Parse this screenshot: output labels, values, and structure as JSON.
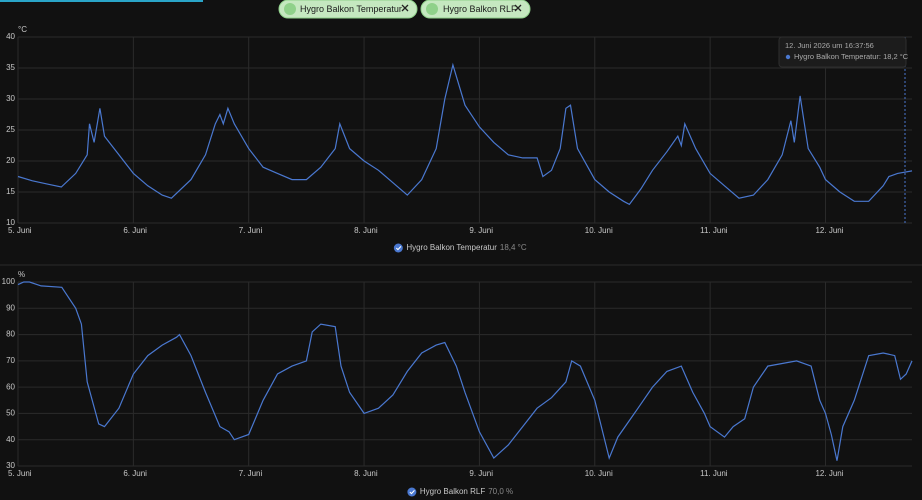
{
  "filters": [
    "Hygro Balkon Temperatur",
    "Hygro Balkon RLF"
  ],
  "chart_data": [
    {
      "type": "line",
      "y_unit": "°C",
      "grid": true,
      "xlim": [
        5,
        12.75
      ],
      "xticks": [
        {
          "value": 5,
          "label": "5. Juni"
        },
        {
          "value": 6,
          "label": "6. Juni"
        },
        {
          "value": 7,
          "label": "7. Juni"
        },
        {
          "value": 8,
          "label": "8. Juni"
        },
        {
          "value": 9,
          "label": "9. Juni"
        },
        {
          "value": 10,
          "label": "10. Juni"
        },
        {
          "value": 11,
          "label": "11. Juni"
        },
        {
          "value": 12,
          "label": "12. Juni"
        }
      ],
      "ylim": [
        10,
        40
      ],
      "yticks": [
        10,
        15,
        20,
        25,
        30,
        35,
        40
      ],
      "x": [
        5,
        5.125,
        5.25,
        5.375,
        5.5,
        5.6,
        5.62,
        5.66,
        5.71,
        5.75,
        5.875,
        6,
        6.125,
        6.25,
        6.33,
        6.5,
        6.625,
        6.71,
        6.75,
        6.78,
        6.82,
        6.875,
        7,
        7.125,
        7.25,
        7.375,
        7.5,
        7.625,
        7.75,
        7.79,
        7.875,
        8,
        8.125,
        8.25,
        8.375,
        8.5,
        8.625,
        8.7,
        8.77,
        8.875,
        9,
        9.125,
        9.25,
        9.375,
        9.5,
        9.55,
        9.625,
        9.7,
        9.75,
        9.79,
        9.85,
        10,
        10.125,
        10.25,
        10.3,
        10.4,
        10.5,
        10.625,
        10.72,
        10.75,
        10.78,
        10.875,
        11,
        11.125,
        11.25,
        11.375,
        11.5,
        11.625,
        11.7,
        11.73,
        11.78,
        11.85,
        11.95,
        12,
        12.125,
        12.25,
        12.375,
        12.5,
        12.55,
        12.625,
        12.75
      ],
      "series": [
        {
          "name": "Hygro Balkon Temperatur",
          "color": "#4a78d0",
          "state": "18,4 °C",
          "values": [
            17.5,
            16.8,
            16.3,
            15.8,
            18,
            21,
            26,
            23,
            28.5,
            24,
            21,
            18,
            16,
            14.5,
            14,
            17,
            21,
            26,
            27.5,
            26,
            28.5,
            26,
            22,
            19,
            18,
            17,
            17,
            19,
            22,
            26,
            22,
            20,
            18.5,
            16.5,
            14.5,
            17,
            22,
            30,
            35.5,
            29,
            25.5,
            23,
            21,
            20.5,
            20.5,
            17.5,
            18.5,
            22,
            28.5,
            29,
            22,
            17,
            15,
            13.5,
            13,
            15.5,
            18.5,
            21.5,
            24,
            22.5,
            26,
            22,
            18,
            16,
            14,
            14.5,
            17,
            21,
            26.5,
            23,
            30.5,
            22,
            19,
            17,
            15,
            13.5,
            13.5,
            16,
            17.5,
            18,
            18.4
          ]
        }
      ],
      "tooltip": {
        "time": "12. Juni 2026 um 16:37:56",
        "text": "Hygro Balkon Temperatur: 18,2 °C"
      }
    },
    {
      "type": "line",
      "y_unit": "%",
      "grid": true,
      "xlim": [
        5,
        12.75
      ],
      "xticks": [
        {
          "value": 5,
          "label": "5. Juni"
        },
        {
          "value": 6,
          "label": "6. Juni"
        },
        {
          "value": 7,
          "label": "7. Juni"
        },
        {
          "value": 8,
          "label": "8. Juni"
        },
        {
          "value": 9,
          "label": "9. Juni"
        },
        {
          "value": 10,
          "label": "10. Juni"
        },
        {
          "value": 11,
          "label": "11. Juni"
        },
        {
          "value": 12,
          "label": "12. Juni"
        }
      ],
      "ylim": [
        30,
        100
      ],
      "yticks": [
        30,
        40,
        50,
        60,
        70,
        80,
        90,
        100
      ],
      "x": [
        5,
        5.05,
        5.1,
        5.2,
        5.38,
        5.5,
        5.55,
        5.6,
        5.7,
        5.75,
        5.875,
        6,
        6.125,
        6.25,
        6.375,
        6.4,
        6.5,
        6.625,
        6.75,
        6.83,
        6.875,
        7,
        7.125,
        7.25,
        7.375,
        7.5,
        7.55,
        7.625,
        7.75,
        7.8,
        7.875,
        8,
        8.125,
        8.25,
        8.375,
        8.5,
        8.625,
        8.7,
        8.8,
        8.875,
        9,
        9.125,
        9.25,
        9.375,
        9.5,
        9.625,
        9.75,
        9.8,
        9.875,
        10,
        10.125,
        10.2,
        10.375,
        10.5,
        10.625,
        10.75,
        10.85,
        10.95,
        11,
        11.125,
        11.2,
        11.3,
        11.375,
        11.5,
        11.625,
        11.75,
        11.875,
        11.95,
        12,
        12.05,
        12.1,
        12.15,
        12.25,
        12.375,
        12.5,
        12.6,
        12.65,
        12.7,
        12.75
      ],
      "series": [
        {
          "name": "Hygro Balkon RLF",
          "color": "#4a78d0",
          "state": "70,0 %",
          "values": [
            99,
            100,
            100,
            98.5,
            98,
            90,
            84,
            62,
            46,
            45,
            52,
            65,
            72,
            76,
            79,
            80,
            72,
            58,
            45,
            43,
            40,
            42,
            55,
            65,
            68,
            70,
            81,
            84,
            83,
            68,
            58,
            50,
            52,
            57,
            66,
            73,
            76,
            77,
            68,
            58,
            43,
            33,
            38,
            45,
            52,
            56,
            62,
            70,
            68,
            55,
            33,
            41,
            52,
            60,
            66,
            68,
            58,
            50,
            45,
            41,
            45,
            48,
            60,
            68,
            69,
            70,
            68,
            55,
            50,
            42,
            32,
            45,
            55,
            72,
            73,
            72,
            63,
            65,
            70
          ]
        }
      ]
    }
  ]
}
